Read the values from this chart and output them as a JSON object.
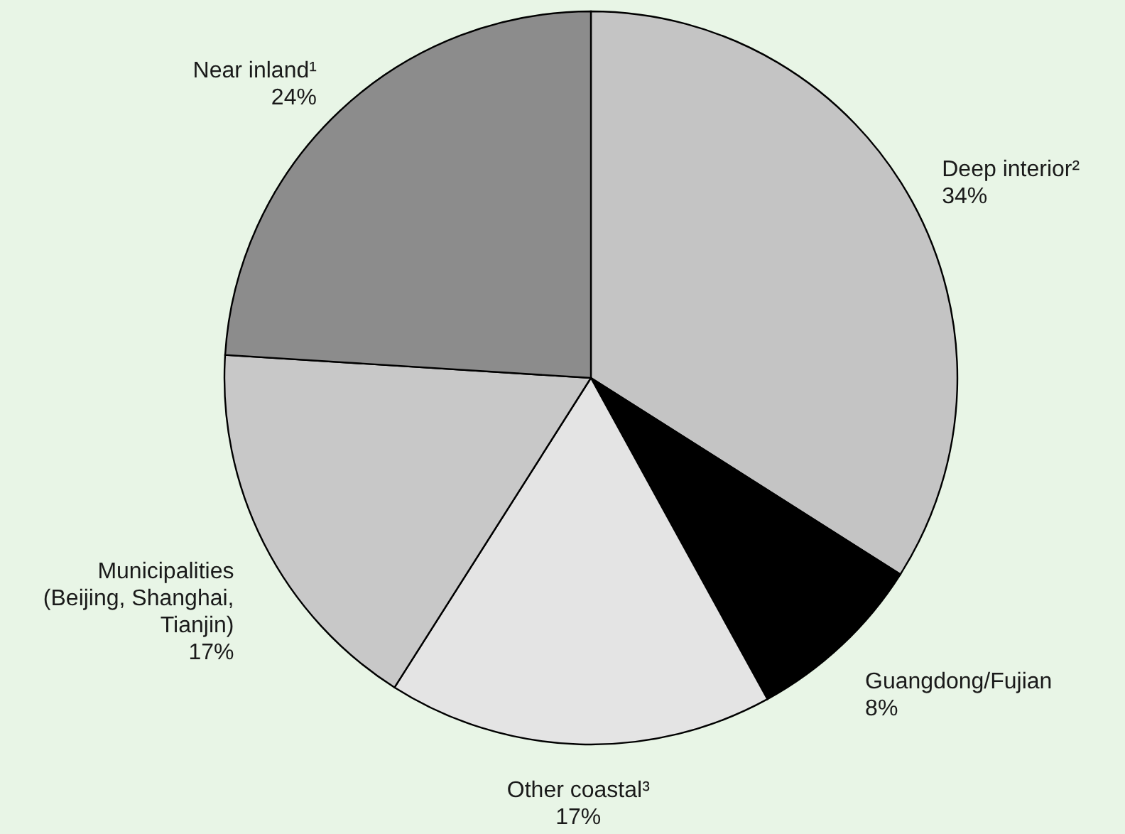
{
  "chart_data": {
    "type": "pie",
    "categories": [
      "Deep interior²",
      "Guangdong/Fujian",
      "Other coastal³",
      "Municipalities (Beijing, Shanghai, Tianjin)",
      "Near inland¹"
    ],
    "values": [
      34,
      8,
      17,
      17,
      24
    ],
    "colors": [
      "#c4c4c4",
      "#000000",
      "#e4e4e4",
      "#c8c8c8",
      "#8c8c8c"
    ],
    "value_labels": [
      "34%",
      "8%",
      "17%",
      "17%",
      "24%"
    ]
  }
}
